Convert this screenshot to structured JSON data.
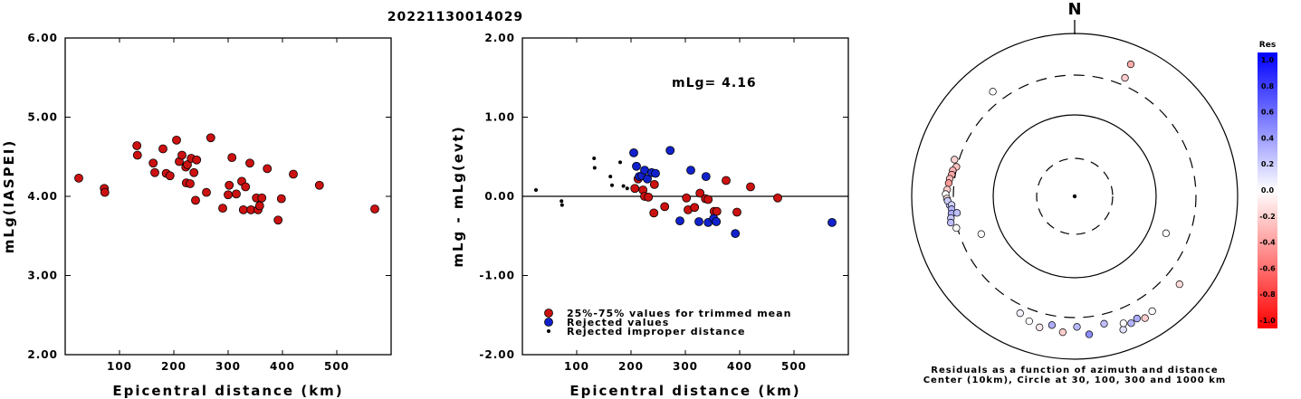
{
  "title": "20221130014029",
  "colors": {
    "red": "#cc1111",
    "blue": "#1122cc",
    "black": "#000000"
  },
  "chart_data": [
    {
      "type": "scatter",
      "xlabel": "Epicentral distance (km)",
      "ylabel": "mLg(IASPEI)",
      "xlim": [
        0,
        600
      ],
      "ylim": [
        2.0,
        6.0
      ],
      "xticks": [
        "100",
        "200",
        "300",
        "400",
        "500"
      ],
      "yticks": [
        "2.00",
        "3.00",
        "4.00",
        "5.00",
        "6.00"
      ],
      "points": [
        [
          25,
          4.23
        ],
        [
          72,
          4.1
        ],
        [
          73,
          4.05
        ],
        [
          132,
          4.64
        ],
        [
          133,
          4.52
        ],
        [
          162,
          4.42
        ],
        [
          165,
          4.3
        ],
        [
          180,
          4.6
        ],
        [
          186,
          4.29
        ],
        [
          193,
          4.26
        ],
        [
          205,
          4.71
        ],
        [
          210,
          4.44
        ],
        [
          215,
          4.52
        ],
        [
          222,
          4.37
        ],
        [
          223,
          4.17
        ],
        [
          225,
          4.4
        ],
        [
          230,
          4.16
        ],
        [
          232,
          4.48
        ],
        [
          237,
          4.3
        ],
        [
          240,
          3.95
        ],
        [
          242,
          4.46
        ],
        [
          260,
          4.05
        ],
        [
          268,
          4.74
        ],
        [
          290,
          3.85
        ],
        [
          300,
          4.02
        ],
        [
          302,
          4.14
        ],
        [
          307,
          4.49
        ],
        [
          315,
          4.03
        ],
        [
          325,
          4.19
        ],
        [
          328,
          3.83
        ],
        [
          332,
          4.12
        ],
        [
          340,
          4.42
        ],
        [
          342,
          3.83
        ],
        [
          352,
          3.98
        ],
        [
          355,
          3.83
        ],
        [
          358,
          3.88
        ],
        [
          362,
          3.98
        ],
        [
          372,
          4.35
        ],
        [
          392,
          3.7
        ],
        [
          398,
          3.97
        ],
        [
          420,
          4.28
        ],
        [
          468,
          4.14
        ],
        [
          570,
          3.84
        ]
      ]
    },
    {
      "type": "scatter",
      "xlabel": "Epicentral distance (km)",
      "ylabel": "mLg - mLg(evt)",
      "xlim": [
        0,
        600
      ],
      "ylim": [
        -2.0,
        2.0
      ],
      "xticks": [
        "100",
        "200",
        "300",
        "400",
        "500"
      ],
      "yticks": [
        "-2.00",
        "-1.00",
        "0.00",
        "1.00",
        "2.00"
      ],
      "annotation": "mLg= 4.16",
      "legend": [
        {
          "label": "25%-75% values for trimmed mean",
          "color": "red"
        },
        {
          "label": "Rejected values",
          "color": "blue"
        },
        {
          "label": "Rejected improper distance",
          "color": "black"
        }
      ],
      "series": [
        {
          "name": "25%-75% values for trimmed mean",
          "color": "red",
          "points": [
            [
              207,
              0.1
            ],
            [
              213,
              0.22
            ],
            [
              222,
              0.08
            ],
            [
              225,
              0.0
            ],
            [
              232,
              -0.01
            ],
            [
              242,
              -0.21
            ],
            [
              243,
              0.15
            ],
            [
              262,
              -0.13
            ],
            [
              302,
              -0.02
            ],
            [
              305,
              -0.17
            ],
            [
              317,
              -0.14
            ],
            [
              327,
              0.04
            ],
            [
              337,
              -0.03
            ],
            [
              342,
              -0.04
            ],
            [
              353,
              -0.19
            ],
            [
              358,
              -0.19
            ],
            [
              375,
              0.2
            ],
            [
              395,
              -0.2
            ],
            [
              420,
              0.12
            ],
            [
              470,
              -0.02
            ]
          ]
        },
        {
          "name": "Rejected values",
          "color": "blue",
          "points": [
            [
              205,
              0.55
            ],
            [
              210,
              0.38
            ],
            [
              215,
              0.25
            ],
            [
              220,
              0.26
            ],
            [
              225,
              0.33
            ],
            [
              230,
              0.22
            ],
            [
              238,
              0.3
            ],
            [
              245,
              0.29
            ],
            [
              272,
              0.58
            ],
            [
              290,
              -0.31
            ],
            [
              310,
              0.33
            ],
            [
              325,
              -0.32
            ],
            [
              338,
              0.25
            ],
            [
              342,
              -0.33
            ],
            [
              352,
              -0.28
            ],
            [
              357,
              -0.32
            ],
            [
              392,
              -0.47
            ],
            [
              570,
              -0.33
            ]
          ]
        },
        {
          "name": "Rejected improper distance",
          "color": "black",
          "points": [
            [
              25,
              0.08
            ],
            [
              72,
              -0.06
            ],
            [
              73,
              -0.11
            ],
            [
              132,
              0.48
            ],
            [
              133,
              0.36
            ],
            [
              162,
              0.25
            ],
            [
              165,
              0.14
            ],
            [
              180,
              0.43
            ],
            [
              186,
              0.13
            ],
            [
              193,
              0.1
            ]
          ]
        }
      ]
    },
    {
      "type": "scatter",
      "subtype": "polar",
      "north_label": "N",
      "captions": [
        "Residuals as a function of azimuth and distance",
        "Center (10km), Circle at 30, 100, 300 and 1000 km"
      ],
      "colorbar": {
        "title": "Res",
        "range": [
          -1.0,
          1.0
        ],
        "ticks": [
          "1.0",
          "0.8",
          "0.6",
          "0.4",
          "0.2",
          "0.0",
          "-0.2",
          "-0.4",
          "-0.6",
          "-0.8",
          "-1.0"
        ]
      },
      "points": [
        {
          "az": 23,
          "dist": 570,
          "res": -0.33
        },
        {
          "az": 23,
          "dist": 372,
          "res": -0.2
        },
        {
          "az": 322,
          "dist": 420,
          "res": 0.0
        },
        {
          "az": 287,
          "dist": 340,
          "res": -0.18
        },
        {
          "az": 284,
          "dist": 305,
          "res": -0.24
        },
        {
          "az": 282,
          "dist": 330,
          "res": -0.3
        },
        {
          "az": 280,
          "dist": 332,
          "res": -0.35
        },
        {
          "az": 278,
          "dist": 345,
          "res": -0.28
        },
        {
          "az": 276,
          "dist": 350,
          "res": -0.4
        },
        {
          "az": 273,
          "dist": 360,
          "res": -0.2
        },
        {
          "az": 271,
          "dist": 375,
          "res": 0.0
        },
        {
          "az": 269,
          "dist": 362,
          "res": -0.12
        },
        {
          "az": 266,
          "dist": 337,
          "res": 0.25
        },
        {
          "az": 268,
          "dist": 355,
          "res": 0.2
        },
        {
          "az": 266,
          "dist": 318,
          "res": 0.18
        },
        {
          "az": 264,
          "dist": 322,
          "res": 0.3
        },
        {
          "az": 262,
          "dist": 328,
          "res": 0.33
        },
        {
          "az": 260,
          "dist": 340,
          "res": 0.22
        },
        {
          "az": 258,
          "dist": 350,
          "res": 0.26
        },
        {
          "az": 262,
          "dist": 280,
          "res": 0.25
        },
        {
          "az": 255,
          "dist": 310,
          "res": 0.0
        },
        {
          "az": 248,
          "dist": 170,
          "res": -0.02
        },
        {
          "az": 130,
          "dist": 470,
          "res": -0.14
        },
        {
          "az": 112,
          "dist": 160,
          "res": -0.01
        },
        {
          "az": 200,
          "dist": 420,
          "res": 0.0
        },
        {
          "az": 185,
          "dist": 465,
          "res": -0.2
        },
        {
          "az": 174,
          "dist": 498,
          "res": 0.45
        },
        {
          "az": 190,
          "dist": 395,
          "res": 0.32
        },
        {
          "az": 179,
          "dist": 393,
          "res": 0.28
        },
        {
          "az": 167,
          "dist": 395,
          "res": 0.25
        },
        {
          "az": 160,
          "dist": 545,
          "res": 0.12
        },
        {
          "az": 159,
          "dist": 460,
          "res": 0.0
        },
        {
          "az": 150,
          "dist": 525,
          "res": -0.2
        },
        {
          "az": 153,
          "dist": 475,
          "res": 0.33
        },
        {
          "az": 156,
          "dist": 500,
          "res": 0.3
        },
        {
          "az": 146,
          "dist": 495,
          "res": 0.0
        },
        {
          "az": 205,
          "dist": 375,
          "res": 0.05
        },
        {
          "az": 195,
          "dist": 455,
          "res": -0.08
        }
      ]
    }
  ]
}
